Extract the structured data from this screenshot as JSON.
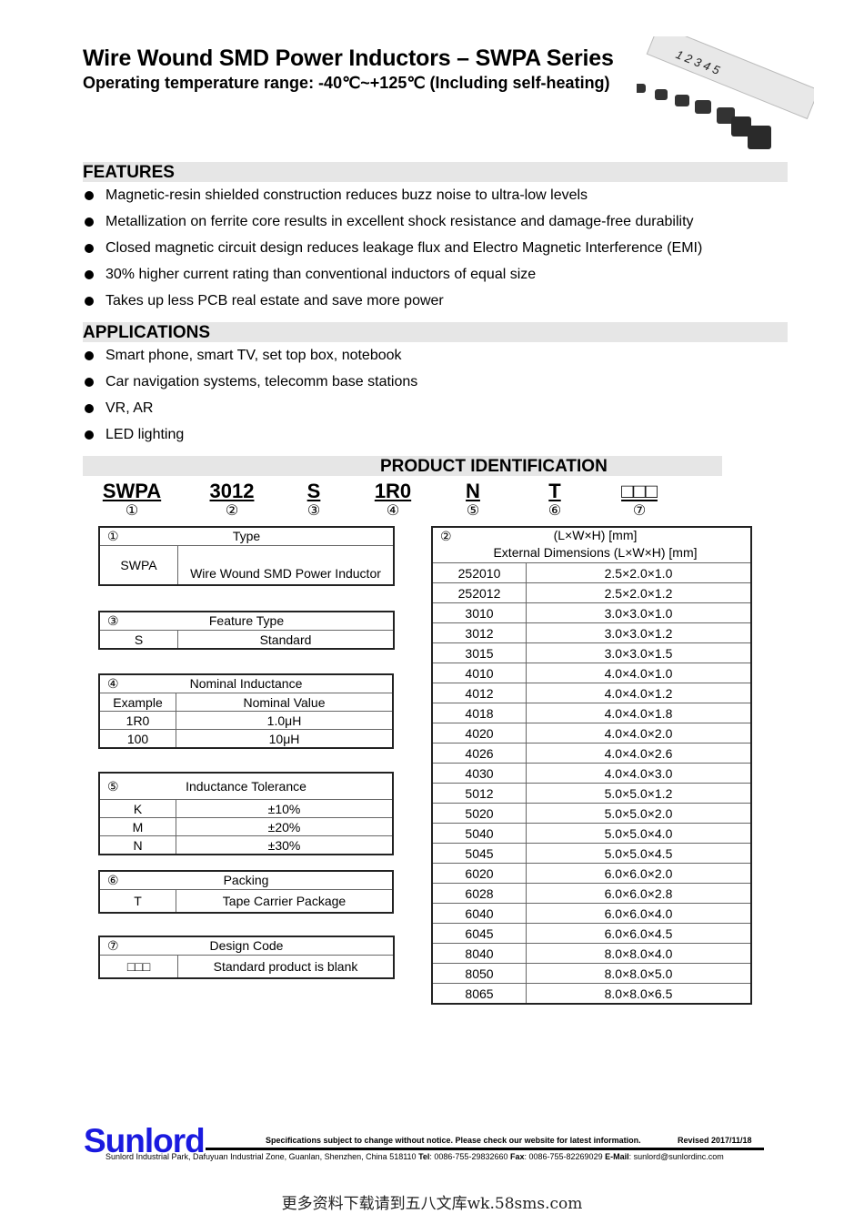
{
  "header": {
    "title": "Wire Wound SMD Power Inductors – SWPA Series",
    "subtitle": "Operating temperature range: -40℃~+125℃  (Including self-heating)"
  },
  "features": {
    "heading": "FEATURES",
    "items": [
      "Magnetic-resin shielded construction reduces buzz noise to ultra-low levels",
      "Metallization on ferrite core results in excellent shock resistance and damage-free durability",
      "Closed magnetic circuit design reduces leakage flux and Electro Magnetic Interference (EMI)",
      "30% higher current rating than conventional inductors of equal size",
      "Takes up less PCB real estate and save more power"
    ]
  },
  "applications": {
    "heading": "APPLICATIONS",
    "items": [
      "Smart phone, smart TV, set top box, notebook",
      "Car navigation systems, telecomm base stations",
      "VR, AR",
      "LED lighting"
    ]
  },
  "product_id": {
    "heading": "PRODUCT IDENTIFICATION",
    "codes": [
      {
        "code": "SWPA",
        "num": "①"
      },
      {
        "code": "3012",
        "num": "②"
      },
      {
        "code": "S",
        "num": "③"
      },
      {
        "code": "1R0",
        "num": "④"
      },
      {
        "code": "N",
        "num": "⑤"
      },
      {
        "code": "T",
        "num": "⑥"
      },
      {
        "code": "□□□",
        "num": "⑦"
      }
    ]
  },
  "type_table": {
    "num": "①",
    "title": "Type",
    "rows": [
      [
        "SWPA",
        "Wire Wound SMD Power Inductor"
      ]
    ]
  },
  "feature_table": {
    "num": "③",
    "title": "Feature Type",
    "rows": [
      [
        "S",
        "Standard"
      ]
    ]
  },
  "inductance_table": {
    "num": "④",
    "title": "Nominal Inductance",
    "rows": [
      [
        "Example",
        "Nominal Value"
      ],
      [
        "1R0",
        "1.0μH"
      ],
      [
        "100",
        "10μH"
      ]
    ]
  },
  "tolerance_table": {
    "num": "⑤",
    "title": "Inductance Tolerance",
    "rows": [
      [
        "K",
        "±10%"
      ],
      [
        "M",
        "±20%"
      ],
      [
        "N",
        "±30%"
      ]
    ]
  },
  "packing_table": {
    "num": "⑥",
    "title": "Packing",
    "rows": [
      [
        "T",
        "Tape Carrier Package"
      ]
    ]
  },
  "design_table": {
    "num": "⑦",
    "title": "Design Code",
    "rows": [
      [
        "□□□",
        "Standard product is blank"
      ]
    ]
  },
  "dimension_table": {
    "num": "②",
    "title_line1": "(L×W×H) [mm]",
    "title_line2": "External Dimensions (L×W×H) [mm]",
    "rows": [
      [
        "252010",
        "2.5×2.0×1.0"
      ],
      [
        "252012",
        "2.5×2.0×1.2"
      ],
      [
        "3010",
        "3.0×3.0×1.0"
      ],
      [
        "3012",
        "3.0×3.0×1.2"
      ],
      [
        "3015",
        "3.0×3.0×1.5"
      ],
      [
        "4010",
        "4.0×4.0×1.0"
      ],
      [
        "4012",
        "4.0×4.0×1.2"
      ],
      [
        "4018",
        "4.0×4.0×1.8"
      ],
      [
        "4020",
        "4.0×4.0×2.0"
      ],
      [
        "4026",
        "4.0×4.0×2.6"
      ],
      [
        "4030",
        "4.0×4.0×3.0"
      ],
      [
        "5012",
        "5.0×5.0×1.2"
      ],
      [
        "5020",
        "5.0×5.0×2.0"
      ],
      [
        "5040",
        "5.0×5.0×4.0"
      ],
      [
        "5045",
        "5.0×5.0×4.5"
      ],
      [
        "6020",
        "6.0×6.0×2.0"
      ],
      [
        "6028",
        "6.0×6.0×2.8"
      ],
      [
        "6040",
        "6.0×6.0×4.0"
      ],
      [
        "6045",
        "6.0×6.0×4.5"
      ],
      [
        "8040",
        "8.0×8.0×4.0"
      ],
      [
        "8050",
        "8.0×8.0×5.0"
      ],
      [
        "8065",
        "8.0×8.0×6.5"
      ]
    ]
  },
  "footer": {
    "logo": "Sunlord",
    "note": "Specifications subject to change without notice. Please check our website for latest information.",
    "revised": "Revised 2017/11/18",
    "address": "Sunlord Industrial Park, Dafuyuan Industrial Zone, Guanlan, Shenzhen, China 518110 ",
    "tel_label": "Tel",
    "tel": ": 0086-755-29832660 ",
    "fax_label": "Fax",
    "fax": ": 0086-755-82269029 ",
    "email_label": "E-Mail",
    "email": ": sunlord@sunlordinc.com"
  },
  "watermark": "更多资料下载请到五八文库wk.58sms.com",
  "colors": {
    "logo": "#1a1adf",
    "section_bg": "#e6e6e6"
  }
}
